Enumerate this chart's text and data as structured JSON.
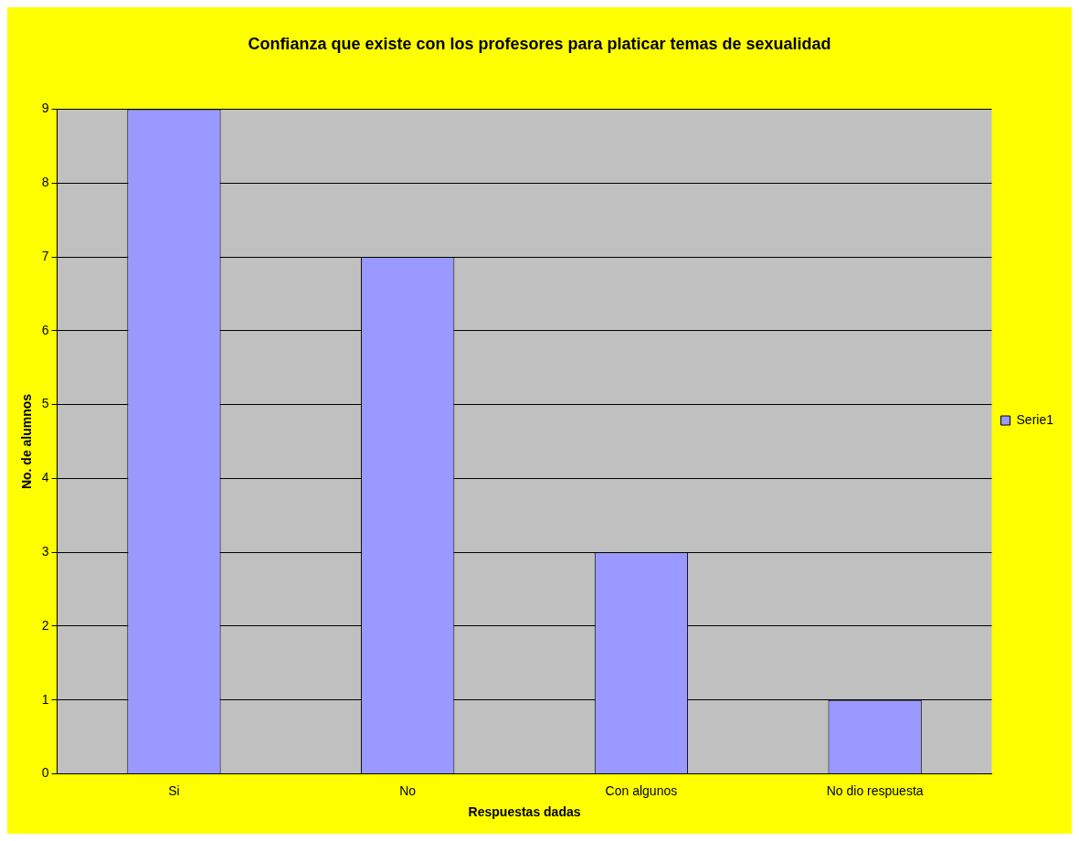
{
  "chart_data": {
    "type": "bar",
    "title": "Confianza que existe con los profesores para platicar temas de sexualidad",
    "xlabel": "Respuestas dadas",
    "ylabel": "No. de alumnos",
    "categories": [
      "Si",
      "No",
      "Con algunos",
      "No dio respuesta"
    ],
    "series": [
      {
        "name": "Serie1",
        "color": "#9999ff",
        "values": [
          9,
          7,
          3,
          1
        ]
      }
    ],
    "ylim": [
      0,
      9
    ],
    "yticks": [
      0,
      1,
      2,
      3,
      4,
      5,
      6,
      7,
      8,
      9
    ],
    "grid": "y",
    "legend": "right"
  }
}
